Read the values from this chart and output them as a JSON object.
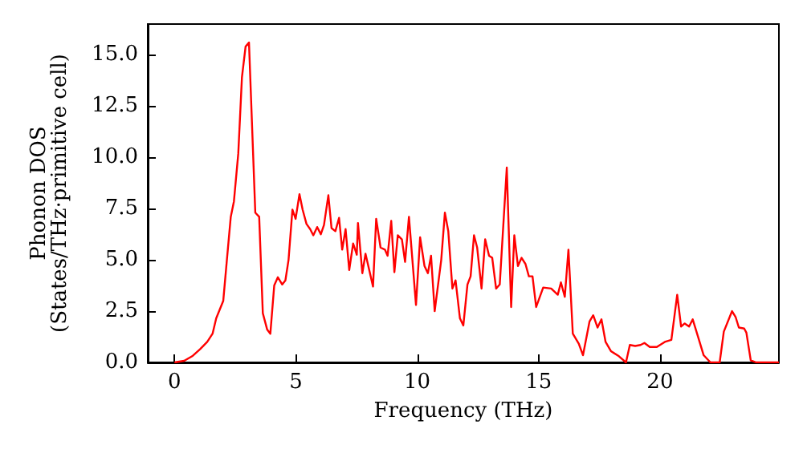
{
  "chart_data": {
    "type": "line",
    "xlabel": "Frequency (THz)",
    "ylabel": "Phonon DOS\n(States/THz·primitive cell)",
    "xlim": [
      -1.1,
      24.9
    ],
    "xticks": [
      0,
      5,
      10,
      15,
      20
    ],
    "ylim": [
      0,
      16.5
    ],
    "yticks": [
      {
        "value": 0,
        "label": "0.0"
      },
      {
        "value": 2.5,
        "label": "2.5"
      },
      {
        "value": 5,
        "label": "5.0"
      },
      {
        "value": 7.5,
        "label": "7.5"
      },
      {
        "value": 10,
        "label": "10.0"
      },
      {
        "value": 12.5,
        "label": "12.5"
      },
      {
        "value": 15,
        "label": "15.0"
      }
    ],
    "grid": false,
    "marker": "none",
    "line_style": "solid",
    "series": [
      {
        "color": "#ff0000",
        "x": [
          0,
          0.4,
          0.73,
          1.06,
          1.35,
          1.57,
          1.72,
          2.01,
          2.16,
          2.32,
          2.45,
          2.63,
          2.78,
          2.93,
          3.07,
          3.33,
          3.49,
          3.64,
          3.82,
          3.95,
          4.11,
          4.26,
          4.44,
          4.57,
          4.7,
          4.86,
          4.99,
          5.15,
          5.28,
          5.44,
          5.59,
          5.72,
          5.88,
          6.03,
          6.16,
          6.34,
          6.47,
          6.63,
          6.78,
          6.91,
          7.05,
          7.2,
          7.36,
          7.51,
          7.56,
          7.74,
          7.87,
          8.18,
          8.31,
          8.49,
          8.67,
          8.78,
          8.93,
          9.06,
          9.2,
          9.37,
          9.5,
          9.66,
          9.95,
          10.12,
          10.3,
          10.44,
          10.57,
          10.72,
          10.99,
          11.14,
          11.28,
          11.45,
          11.58,
          11.76,
          11.9,
          12.07,
          12.2,
          12.34,
          12.47,
          12.65,
          12.8,
          12.96,
          13.09,
          13.25,
          13.4,
          13.69,
          13.87,
          14.0,
          14.15,
          14.3,
          14.46,
          14.6,
          14.75,
          14.9,
          15.19,
          15.52,
          15.79,
          15.92,
          16.08,
          16.23,
          16.41,
          16.66,
          16.83,
          17.1,
          17.25,
          17.43,
          17.59,
          17.76,
          17.98,
          18.31,
          18.6,
          18.76,
          18.98,
          19.2,
          19.36,
          19.58,
          19.87,
          20.2,
          20.47,
          20.71,
          20.87,
          21.02,
          21.2,
          21.35,
          21.57,
          21.8,
          22.08,
          22.46,
          22.63,
          22.97,
          23.12,
          23.25,
          23.47,
          23.56,
          23.74,
          23.96,
          24.9
        ],
        "values": [
          0,
          0.08,
          0.3,
          0.65,
          1.0,
          1.4,
          2.15,
          3.0,
          5.0,
          7.1,
          7.85,
          10.2,
          13.9,
          15.4,
          15.6,
          7.3,
          7.1,
          2.4,
          1.6,
          1.4,
          3.75,
          4.15,
          3.8,
          4.0,
          5.0,
          7.45,
          7.0,
          8.2,
          7.45,
          6.75,
          6.5,
          6.2,
          6.6,
          6.25,
          6.7,
          8.15,
          6.55,
          6.4,
          7.05,
          5.5,
          6.5,
          4.5,
          5.8,
          5.25,
          6.8,
          4.35,
          5.3,
          3.7,
          7.0,
          5.6,
          5.5,
          5.2,
          6.9,
          4.4,
          6.2,
          6.0,
          4.9,
          7.1,
          2.8,
          6.1,
          4.7,
          4.35,
          5.2,
          2.5,
          5.0,
          7.3,
          6.4,
          3.6,
          4.0,
          2.15,
          1.8,
          3.8,
          4.2,
          6.2,
          5.6,
          3.6,
          6.0,
          5.2,
          5.1,
          3.6,
          3.8,
          9.5,
          2.7,
          6.2,
          4.7,
          5.1,
          4.8,
          4.2,
          4.2,
          2.7,
          3.65,
          3.6,
          3.3,
          3.9,
          3.2,
          5.5,
          1.4,
          0.9,
          0.35,
          2.0,
          2.3,
          1.7,
          2.1,
          1.0,
          0.55,
          0.3,
          0,
          0.85,
          0.8,
          0.85,
          0.95,
          0.75,
          0.75,
          1.0,
          1.1,
          3.3,
          1.75,
          1.9,
          1.75,
          2.1,
          1.25,
          0.35,
          0,
          0,
          1.5,
          2.5,
          2.2,
          1.7,
          1.65,
          1.45,
          0.1,
          0,
          0
        ]
      }
    ]
  }
}
